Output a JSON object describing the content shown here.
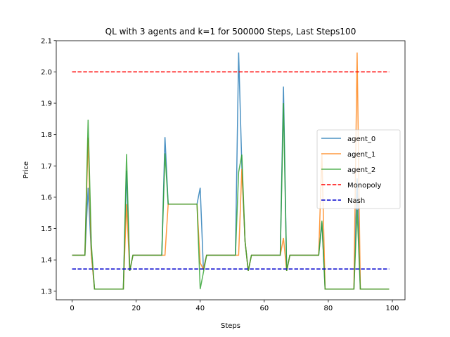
{
  "chart_data": {
    "type": "line",
    "title": "QL with 3 agents and k=1 for 500000 Steps, Last Steps100",
    "xlabel": "Steps",
    "ylabel": "Price",
    "xlim": [
      -4.95,
      103.95
    ],
    "ylim": [
      1.2727,
      2.0995
    ],
    "xticks": [
      0,
      20,
      40,
      60,
      80,
      100
    ],
    "yticks": [
      1.3,
      1.4,
      1.5,
      1.6,
      1.7,
      1.8,
      1.9,
      2.0,
      2.1
    ],
    "grid": false,
    "legend_position": "center-right",
    "series": [
      {
        "name": "agent_0",
        "color": "#1f77b4",
        "style": "solid",
        "points": [
          [
            0,
            1.415
          ],
          [
            4,
            1.415
          ],
          [
            5,
            1.63
          ],
          [
            6,
            1.42
          ],
          [
            7,
            1.307
          ],
          [
            16,
            1.307
          ],
          [
            17,
            1.685
          ],
          [
            18,
            1.365
          ],
          [
            19,
            1.415
          ],
          [
            28,
            1.415
          ],
          [
            29,
            1.792
          ],
          [
            30,
            1.578
          ],
          [
            39,
            1.578
          ],
          [
            40,
            1.63
          ],
          [
            41,
            1.37
          ],
          [
            42,
            1.415
          ],
          [
            51,
            1.415
          ],
          [
            52,
            2.062
          ],
          [
            53,
            1.7
          ],
          [
            54,
            1.46
          ],
          [
            55,
            1.365
          ],
          [
            56,
            1.415
          ],
          [
            65,
            1.415
          ],
          [
            66,
            1.953
          ],
          [
            67,
            1.365
          ],
          [
            68,
            1.415
          ],
          [
            77,
            1.415
          ],
          [
            78,
            1.52
          ],
          [
            79,
            1.307
          ],
          [
            88,
            1.307
          ],
          [
            89,
            1.66
          ],
          [
            90,
            1.307
          ],
          [
            99,
            1.307
          ]
        ]
      },
      {
        "name": "agent_1",
        "color": "#ff7f0e",
        "style": "solid",
        "points": [
          [
            0,
            1.415
          ],
          [
            4,
            1.415
          ],
          [
            5,
            1.79
          ],
          [
            6,
            1.42
          ],
          [
            7,
            1.307
          ],
          [
            16,
            1.307
          ],
          [
            17,
            1.578
          ],
          [
            18,
            1.365
          ],
          [
            19,
            1.415
          ],
          [
            29,
            1.415
          ],
          [
            30,
            1.578
          ],
          [
            39,
            1.578
          ],
          [
            40,
            1.39
          ],
          [
            41,
            1.37
          ],
          [
            42,
            1.415
          ],
          [
            52,
            1.415
          ],
          [
            53,
            1.69
          ],
          [
            54,
            1.46
          ],
          [
            55,
            1.365
          ],
          [
            56,
            1.415
          ],
          [
            65,
            1.415
          ],
          [
            66,
            1.47
          ],
          [
            67,
            1.365
          ],
          [
            68,
            1.415
          ],
          [
            77,
            1.415
          ],
          [
            78,
            1.74
          ],
          [
            79,
            1.307
          ],
          [
            88,
            1.307
          ],
          [
            89,
            2.062
          ],
          [
            90,
            1.307
          ],
          [
            99,
            1.307
          ]
        ]
      },
      {
        "name": "agent_2",
        "color": "#2ca02c",
        "style": "solid",
        "points": [
          [
            0,
            1.415
          ],
          [
            4,
            1.415
          ],
          [
            5,
            1.847
          ],
          [
            6,
            1.45
          ],
          [
            7,
            1.307
          ],
          [
            16,
            1.307
          ],
          [
            17,
            1.738
          ],
          [
            18,
            1.365
          ],
          [
            19,
            1.415
          ],
          [
            28,
            1.415
          ],
          [
            29,
            1.74
          ],
          [
            30,
            1.578
          ],
          [
            39,
            1.578
          ],
          [
            40,
            1.307
          ],
          [
            41,
            1.36
          ],
          [
            42,
            1.415
          ],
          [
            51,
            1.415
          ],
          [
            52,
            1.68
          ],
          [
            53,
            1.736
          ],
          [
            54,
            1.46
          ],
          [
            55,
            1.365
          ],
          [
            56,
            1.415
          ],
          [
            65,
            1.415
          ],
          [
            66,
            1.9
          ],
          [
            67,
            1.365
          ],
          [
            68,
            1.415
          ],
          [
            77,
            1.415
          ],
          [
            78,
            1.525
          ],
          [
            79,
            1.307
          ],
          [
            88,
            1.307
          ],
          [
            89,
            1.56
          ],
          [
            90,
            1.307
          ],
          [
            99,
            1.307
          ]
        ]
      },
      {
        "name": "Monopoly",
        "color": "#ff0000",
        "style": "dashed",
        "points": [
          [
            0,
            2.0
          ],
          [
            99,
            2.0
          ]
        ]
      },
      {
        "name": "Nash",
        "color": "#0000cd",
        "style": "dashed",
        "points": [
          [
            0,
            1.371
          ],
          [
            99,
            1.371
          ]
        ]
      }
    ]
  }
}
